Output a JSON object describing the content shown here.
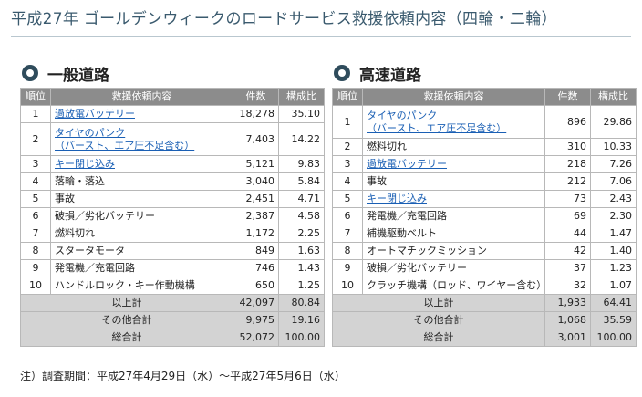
{
  "title": "平成27年 ゴールデンウィークのロードサービス救援依頼内容（四輪・二輪）",
  "headers": {
    "rank": "順位",
    "content": "救援依頼内容",
    "count": "件数",
    "ratio": "構成比"
  },
  "general": {
    "title": "一般道路",
    "rows": [
      {
        "rank": "1",
        "lines": [
          "過放電バッテリー"
        ],
        "link": true,
        "count": "18,278",
        "ratio": "35.10"
      },
      {
        "rank": "2",
        "lines": [
          "タイヤのパンク",
          "（バースト、エア圧不足含む）"
        ],
        "link": true,
        "count": "7,403",
        "ratio": "14.22"
      },
      {
        "rank": "3",
        "lines": [
          "キー閉じ込み"
        ],
        "link": true,
        "count": "5,121",
        "ratio": "9.83"
      },
      {
        "rank": "4",
        "lines": [
          "落輪・落込"
        ],
        "link": false,
        "count": "3,040",
        "ratio": "5.84"
      },
      {
        "rank": "5",
        "lines": [
          "事故"
        ],
        "link": false,
        "count": "2,451",
        "ratio": "4.71"
      },
      {
        "rank": "6",
        "lines": [
          "破損／劣化バッテリー"
        ],
        "link": false,
        "count": "2,387",
        "ratio": "4.58"
      },
      {
        "rank": "7",
        "lines": [
          "燃料切れ"
        ],
        "link": false,
        "count": "1,172",
        "ratio": "2.25"
      },
      {
        "rank": "8",
        "lines": [
          "スタータモータ"
        ],
        "link": false,
        "count": "849",
        "ratio": "1.63"
      },
      {
        "rank": "9",
        "lines": [
          "発電機／充電回路"
        ],
        "link": false,
        "count": "746",
        "ratio": "1.43"
      },
      {
        "rank": "10",
        "lines": [
          "ハンドルロック・キー作動機構"
        ],
        "link": false,
        "count": "650",
        "ratio": "1.25"
      }
    ],
    "subtotal": {
      "label": "以上計",
      "count": "42,097",
      "ratio": "80.84"
    },
    "others": {
      "label": "その他合計",
      "count": "9,975",
      "ratio": "19.16"
    },
    "total": {
      "label": "総合計",
      "count": "52,072",
      "ratio": "100.00"
    }
  },
  "highway": {
    "title": "高速道路",
    "rows": [
      {
        "rank": "1",
        "lines": [
          "タイヤのパンク",
          "（バースト、エア圧不足含む）"
        ],
        "link": true,
        "count": "896",
        "ratio": "29.86"
      },
      {
        "rank": "2",
        "lines": [
          "燃料切れ"
        ],
        "link": false,
        "count": "310",
        "ratio": "10.33"
      },
      {
        "rank": "3",
        "lines": [
          "過放電バッテリー"
        ],
        "link": true,
        "count": "218",
        "ratio": "7.26"
      },
      {
        "rank": "4",
        "lines": [
          "事故"
        ],
        "link": false,
        "count": "212",
        "ratio": "7.06"
      },
      {
        "rank": "5",
        "lines": [
          "キー閉じ込み"
        ],
        "link": true,
        "count": "73",
        "ratio": "2.43"
      },
      {
        "rank": "6",
        "lines": [
          "発電機／充電回路"
        ],
        "link": false,
        "count": "69",
        "ratio": "2.30"
      },
      {
        "rank": "7",
        "lines": [
          "補機駆動ベルト"
        ],
        "link": false,
        "count": "44",
        "ratio": "1.47"
      },
      {
        "rank": "8",
        "lines": [
          "オートマチックミッション"
        ],
        "link": false,
        "count": "42",
        "ratio": "1.40"
      },
      {
        "rank": "9",
        "lines": [
          "破損／劣化バッテリー"
        ],
        "link": false,
        "count": "37",
        "ratio": "1.23"
      },
      {
        "rank": "10",
        "lines": [
          "クラッチ機構（ロッド、ワイヤー含む）"
        ],
        "link": false,
        "count": "32",
        "ratio": "1.07"
      }
    ],
    "subtotal": {
      "label": "以上計",
      "count": "1,933",
      "ratio": "64.41"
    },
    "others": {
      "label": "その他合計",
      "count": "1,068",
      "ratio": "35.59"
    },
    "total": {
      "label": "総合計",
      "count": "3,001",
      "ratio": "100.00"
    }
  },
  "note": "注）調査期間：平成27年4月29日（水）～平成27年5月6日（水）"
}
